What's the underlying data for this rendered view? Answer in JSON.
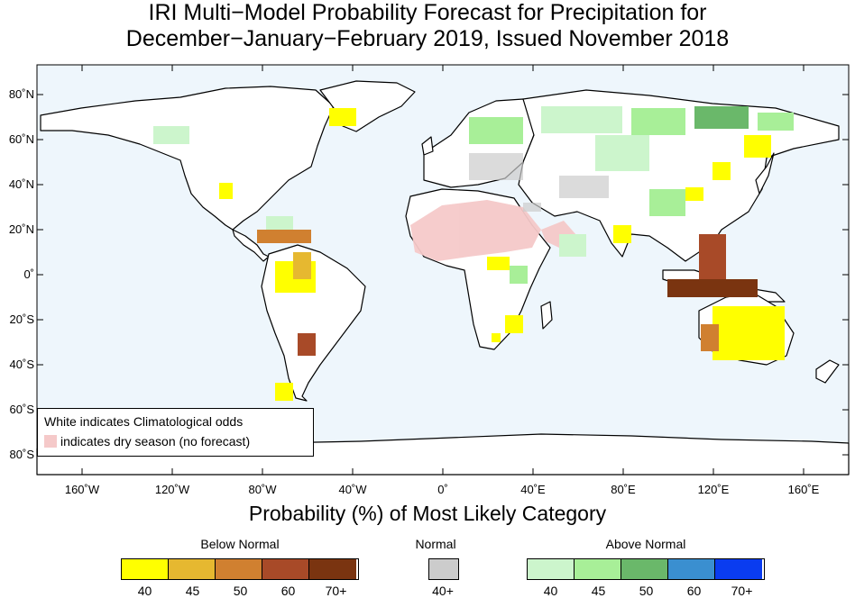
{
  "title": {
    "line1": "IRI Multi−Model Probability Forecast for Precipitation for",
    "line2": "December−January−February 2019, Issued November 2018"
  },
  "axes": {
    "lat_labels": [
      "80˚N",
      "60˚N",
      "40˚N",
      "20˚N",
      "0˚",
      "20˚S",
      "40˚S",
      "60˚S",
      "80˚S"
    ],
    "lon_labels": [
      "160˚W",
      "120˚W",
      "80˚W",
      "40˚W",
      "0˚",
      "40˚E",
      "80˚E",
      "120˚E",
      "160˚E"
    ],
    "xlabel": "Probability (%) of Most Likely Category"
  },
  "map_legend": {
    "line1": "White indicates Climatological odds",
    "line2": "indicates dry season (no forecast)",
    "dry_color": "#f5c9c9"
  },
  "colorbar": {
    "below": {
      "title": "Below Normal",
      "ticks": [
        "40",
        "45",
        "50",
        "60",
        "70+"
      ],
      "colors": [
        "#ffff00",
        "#e6b830",
        "#d08030",
        "#a84a28",
        "#7a3410"
      ]
    },
    "normal": {
      "title": "Normal",
      "ticks": [
        "40+"
      ],
      "colors": [
        "#cccccc"
      ]
    },
    "above": {
      "title": "Above Normal",
      "ticks": [
        "40",
        "45",
        "50",
        "60",
        "70+"
      ],
      "colors": [
        "#ccf5cc",
        "#a8ef98",
        "#6ab86a",
        "#3a8fd0",
        "#0a3cf0"
      ]
    }
  },
  "colors": {
    "ocean": "#eef6fc",
    "land": "#ffffff",
    "coast": "#000000"
  }
}
